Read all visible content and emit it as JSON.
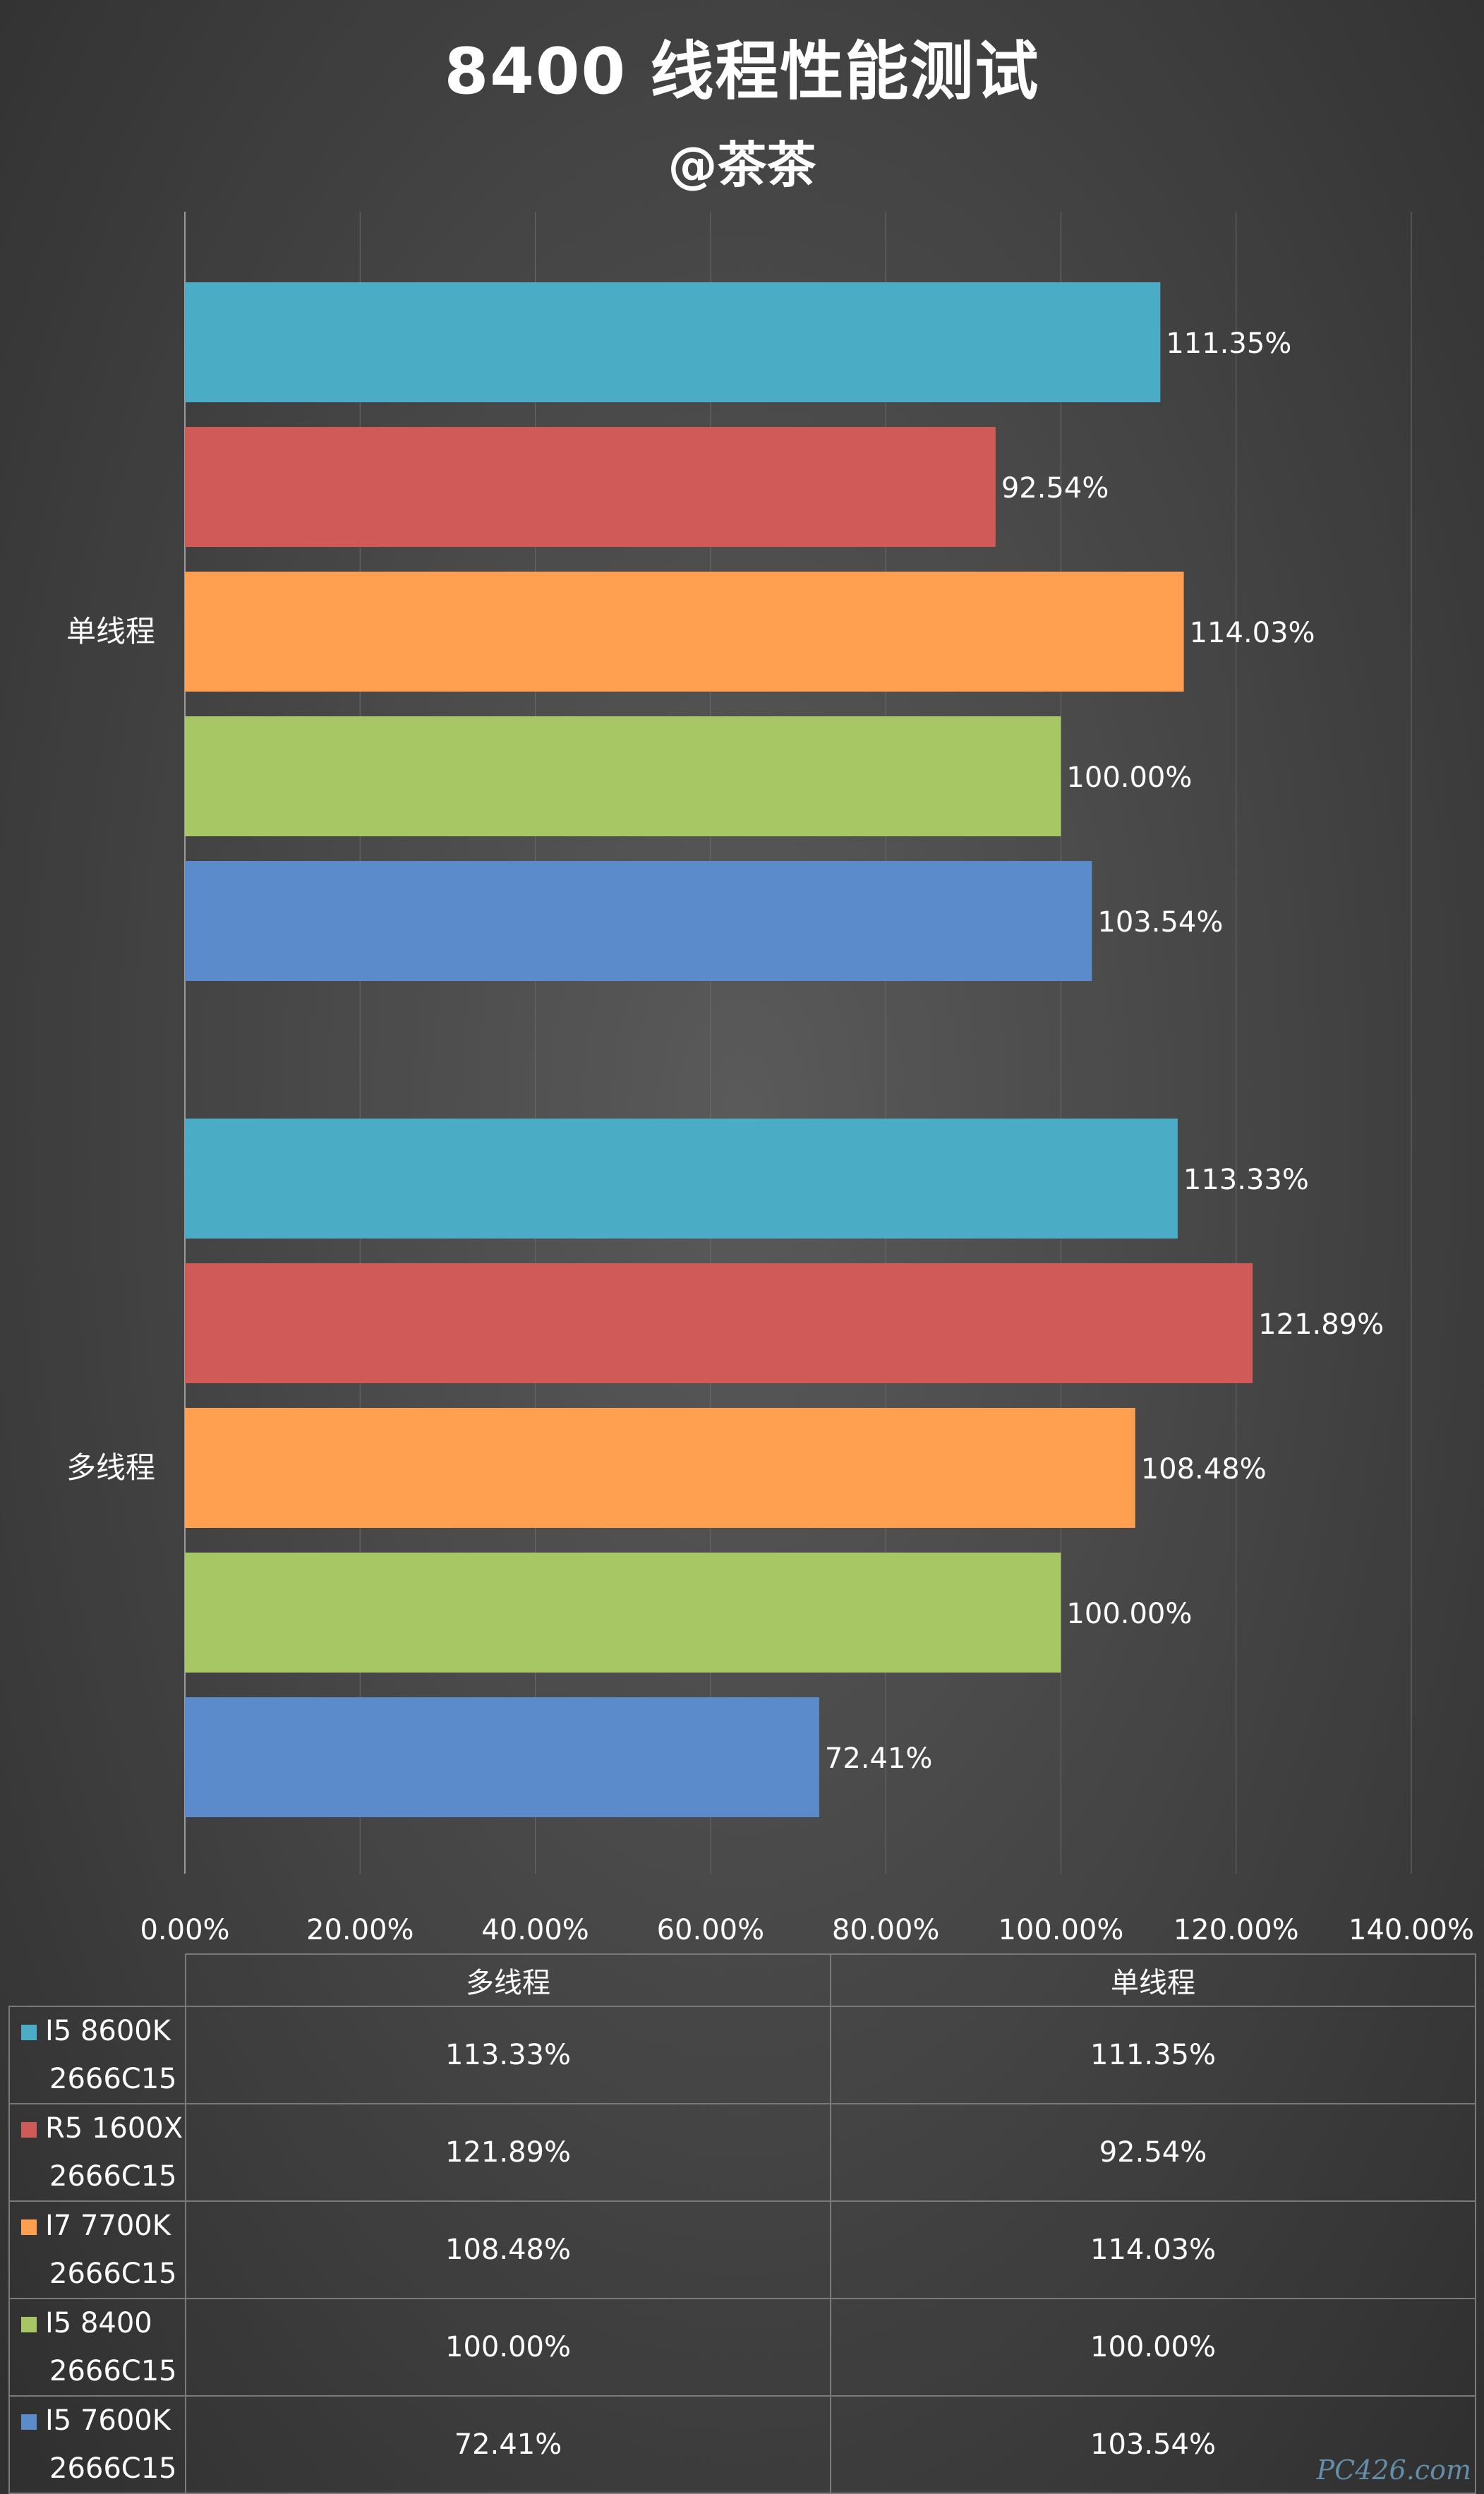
{
  "title": "8400 线程性能测试",
  "subtitle": "@茶茶",
  "watermark": "PC426.com",
  "chart_data": {
    "type": "bar",
    "orientation": "horizontal",
    "groups": [
      "单线程",
      "多线程"
    ],
    "xlim": [
      0,
      140
    ],
    "x_ticks": [
      "0.00%",
      "20.00%",
      "40.00%",
      "60.00%",
      "80.00%",
      "100.00%",
      "120.00%",
      "140.00%"
    ],
    "grid": "vertical",
    "series": [
      {
        "name": "I5 8600K 2666C15",
        "color": "#4bacc6",
        "values": [
          111.35,
          113.33
        ],
        "labels": [
          "111.35%",
          "113.33%"
        ]
      },
      {
        "name": "R5 1600X 2666C15",
        "color": "#cf5a58",
        "values": [
          92.54,
          121.89
        ],
        "labels": [
          "92.54%",
          "121.89%"
        ]
      },
      {
        "name": "I7 7700K 2666C15",
        "color": "#ff9f4f",
        "values": [
          114.03,
          108.48
        ],
        "labels": [
          "114.03%",
          "108.48%"
        ]
      },
      {
        "name": "I5 8400 2666C15",
        "color": "#a6c763",
        "values": [
          100.0,
          100.0
        ],
        "labels": [
          "100.00%",
          "100.00%"
        ]
      },
      {
        "name": "I5 7600K 2666C15",
        "color": "#5b8bcb",
        "values": [
          103.54,
          72.41
        ],
        "labels": [
          "103.54%",
          "72.41%"
        ]
      }
    ]
  },
  "table": {
    "columns": [
      "多线程",
      "单线程"
    ],
    "rows": [
      {
        "name": "I5 8600K",
        "sub": "2666C15",
        "color": "#4bacc6",
        "multi": "113.33%",
        "single": "111.35%"
      },
      {
        "name": "R5 1600X",
        "sub": "2666C15",
        "color": "#cf5a58",
        "multi": "121.89%",
        "single": "92.54%"
      },
      {
        "name": "I7 7700K",
        "sub": "2666C15",
        "color": "#ff9f4f",
        "multi": "108.48%",
        "single": "114.03%"
      },
      {
        "name": "I5 8400",
        "sub": "2666C15",
        "color": "#a6c763",
        "multi": "100.00%",
        "single": "100.00%"
      },
      {
        "name": "I5 7600K",
        "sub": "2666C15",
        "color": "#5b8bcb",
        "multi": "72.41%",
        "single": "103.54%"
      }
    ]
  }
}
